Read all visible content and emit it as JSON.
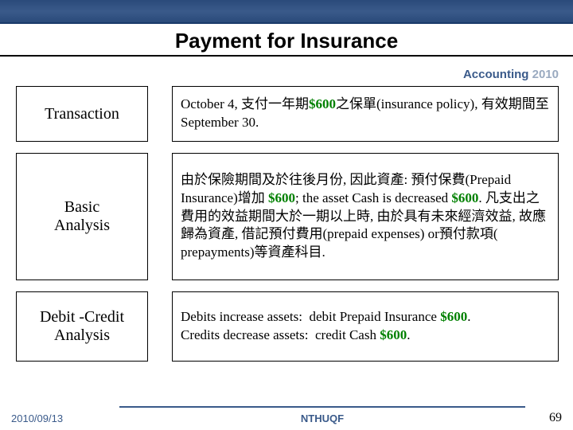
{
  "title": "Payment for Insurance",
  "course": {
    "part1": "Accounting ",
    "part2": "2010"
  },
  "rows": [
    {
      "label": "Transaction",
      "heightClass": "h1",
      "rightHtml": "October 4, 支付一年期<span class='green'>$600</span>之保單(insurance policy), 有效期間至 September 30."
    },
    {
      "label": "Basic\nAnalysis",
      "heightClass": "h2",
      "rightHtml": "由於保險期間及於往後月份, 因此資產: 預付保費(Prepaid Insurance)增加 <span class='green'>$600</span>; the asset Cash is decreased <span class='green'>$600</span>. 凡支出之費用的效益期間大於一期以上時, 由於具有未來經濟效益, 故應歸為資產, 借記預付費用(prepaid expenses) or預付款項( prepayments)等資產科目."
    },
    {
      "label": "Debit -Credit\nAnalysis",
      "heightClass": "h3",
      "rightHtml": "Debits increase assets:&nbsp;&nbsp;debit Prepaid Insurance <span class='green'>$600</span>.<br>Credits decrease assets:&nbsp;&nbsp;credit Cash <span class='green'>$600</span>."
    }
  ],
  "footer": {
    "date": "2010/09/13",
    "org": "NTHUQF",
    "page": "69"
  },
  "colors": {
    "band": "#2a4a7a",
    "green": "#008000"
  }
}
